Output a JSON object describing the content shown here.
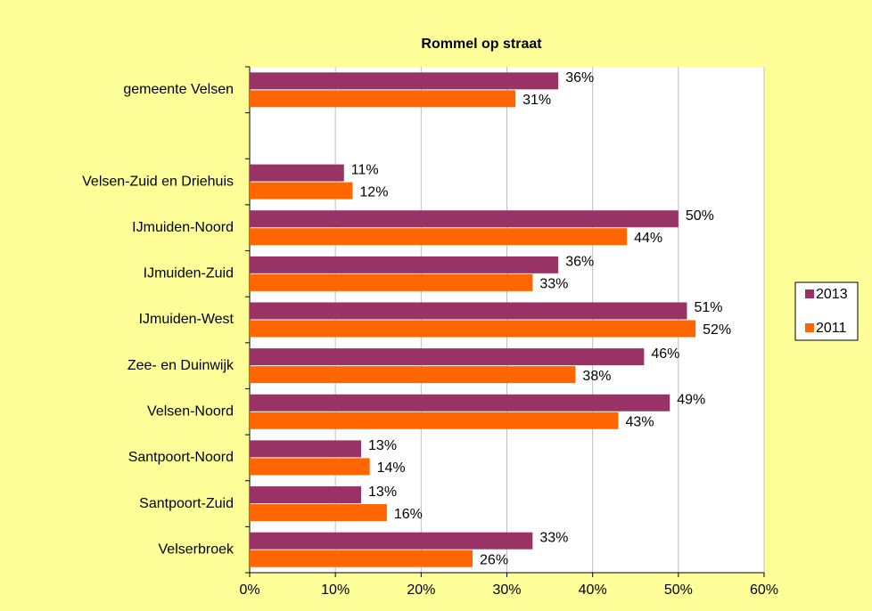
{
  "chart_data": {
    "type": "bar",
    "orientation": "horizontal",
    "title": "Rommel op straat",
    "categories": [
      "gemeente Velsen",
      null,
      "Velsen-Zuid en Driehuis",
      "IJmuiden-Noord",
      "IJmuiden-Zuid",
      "IJmuiden-West",
      "Zee- en Duinwijk",
      "Velsen-Noord",
      "Santpoort-Noord",
      "Santpoort-Zuid",
      "Velserbroek"
    ],
    "series": [
      {
        "name": "2013",
        "color": "#993366",
        "values": [
          36,
          null,
          11,
          50,
          36,
          51,
          46,
          49,
          13,
          13,
          33
        ],
        "value_labels": [
          "36%",
          null,
          "11%",
          "50%",
          "36%",
          "51%",
          "46%",
          "49%",
          "13%",
          "13%",
          "33%"
        ]
      },
      {
        "name": "2011",
        "color": "#ff6600",
        "values": [
          31,
          null,
          12,
          44,
          33,
          52,
          38,
          43,
          14,
          16,
          26
        ],
        "value_labels": [
          "31%",
          null,
          "12%",
          "44%",
          "33%",
          "52%",
          "38%",
          "43%",
          "14%",
          "16%",
          "26%"
        ]
      }
    ],
    "xlim": [
      0,
      60
    ],
    "xticks": [
      {
        "value": 0,
        "label": "0%"
      },
      {
        "value": 10,
        "label": "10%"
      },
      {
        "value": 20,
        "label": "20%"
      },
      {
        "value": 30,
        "label": "30%"
      },
      {
        "value": 40,
        "label": "40%"
      },
      {
        "value": 50,
        "label": "50%"
      },
      {
        "value": 60,
        "label": "60%"
      }
    ],
    "grid": true,
    "legend": "right"
  }
}
